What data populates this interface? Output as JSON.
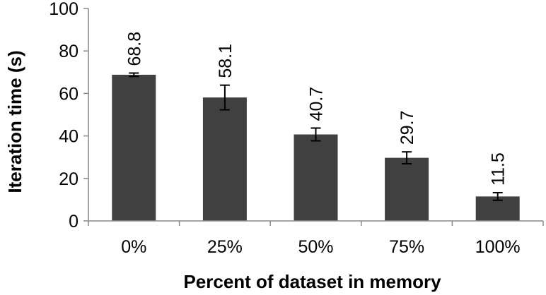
{
  "chart_data": {
    "type": "bar",
    "categories": [
      "0%",
      "25%",
      "50%",
      "75%",
      "100%"
    ],
    "values": [
      68.8,
      58.1,
      40.7,
      29.7,
      11.5
    ],
    "error": [
      0.8,
      5.8,
      3.0,
      2.8,
      1.8
    ],
    "data_labels": [
      "68.8",
      "58.1",
      "40.7",
      "29.7",
      "11.5"
    ],
    "xlabel": "Percent of dataset in memory",
    "ylabel": "Iteration time (s)",
    "ylim": [
      0,
      100
    ],
    "yticks": [
      0,
      20,
      40,
      60,
      80,
      100
    ],
    "ytick_labels": [
      "0",
      "20",
      "40",
      "60",
      "80",
      "100"
    ],
    "grid": false,
    "bar_color": "#404040",
    "error_bar_color": "#000000"
  }
}
